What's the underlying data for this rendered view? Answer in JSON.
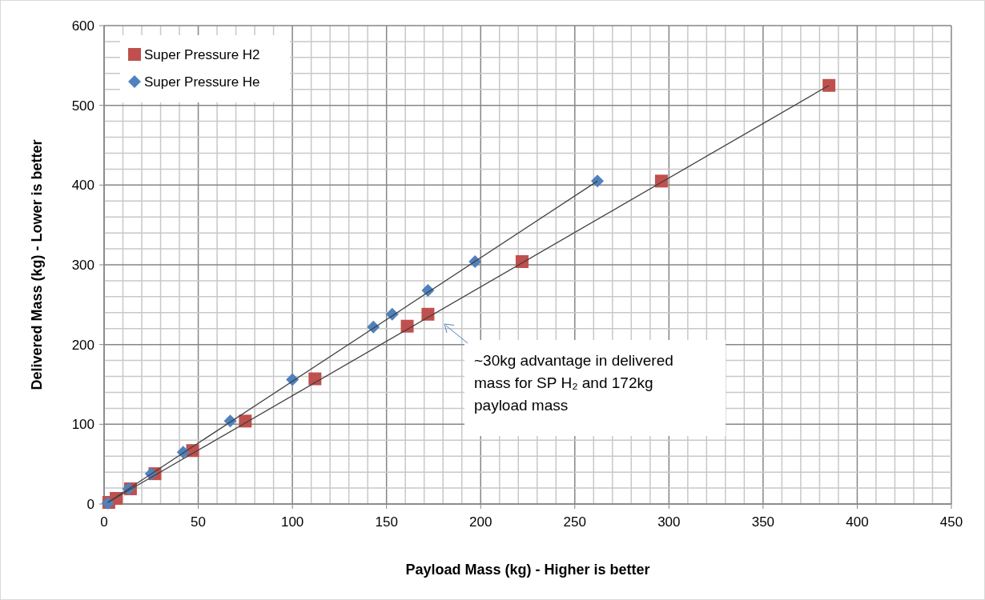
{
  "chart_data": {
    "type": "scatter",
    "xlabel": "Payload Mass (kg) - Higher is better",
    "ylabel": "Delivered Mass (kg) - Lower is better",
    "xlim": [
      0,
      450
    ],
    "ylim": [
      0,
      600
    ],
    "xticks": [
      0,
      {
        "value": 10,
        "label": null
      },
      {
        "value": 20,
        "label": null
      },
      {
        "value": 30,
        "label": null
      },
      {
        "value": 40,
        "label": null
      },
      50,
      {
        "value": 60,
        "label": null
      },
      {
        "value": 70,
        "label": null
      },
      {
        "value": 80,
        "label": null
      },
      {
        "value": 90,
        "label": null
      },
      100,
      {
        "value": 110,
        "label": null
      },
      {
        "value": 120,
        "label": null
      },
      {
        "value": 130,
        "label": null
      },
      {
        "value": 140,
        "label": null
      },
      150,
      {
        "value": 160,
        "label": null
      },
      {
        "value": 170,
        "label": null
      },
      {
        "value": 180,
        "label": null
      },
      {
        "value": 190,
        "label": null
      },
      200,
      {
        "value": 210,
        "label": null
      },
      {
        "value": 220,
        "label": null
      },
      {
        "value": 230,
        "label": null
      },
      {
        "value": 240,
        "label": null
      },
      250,
      {
        "value": 260,
        "label": null
      },
      {
        "value": 270,
        "label": null
      },
      {
        "value": 280,
        "label": null
      },
      {
        "value": 290,
        "label": null
      },
      300,
      {
        "value": 310,
        "label": null
      },
      {
        "value": 320,
        "label": null
      },
      {
        "value": 330,
        "label": null
      },
      {
        "value": 340,
        "label": null
      },
      350,
      {
        "value": 360,
        "label": null
      },
      {
        "value": 370,
        "label": null
      },
      {
        "value": 380,
        "label": null
      },
      {
        "value": 390,
        "label": null
      },
      400,
      {
        "value": 410,
        "label": null
      },
      {
        "value": 420,
        "label": null
      },
      {
        "value": 430,
        "label": null
      },
      {
        "value": 440,
        "label": null
      },
      450
    ],
    "yticks": [
      0,
      {
        "value": 20,
        "label": null
      },
      {
        "value": 40,
        "label": null
      },
      {
        "value": 60,
        "label": null
      },
      {
        "value": 80,
        "label": null
      },
      100,
      {
        "value": 120,
        "label": null
      },
      {
        "value": 140,
        "label": null
      },
      {
        "value": 160,
        "label": null
      },
      {
        "value": 180,
        "label": null
      },
      200,
      {
        "value": 220,
        "label": null
      },
      {
        "value": 240,
        "label": null
      },
      {
        "value": 260,
        "label": null
      },
      {
        "value": 280,
        "label": null
      },
      300,
      {
        "value": 320,
        "label": null
      },
      {
        "value": 340,
        "label": null
      },
      {
        "value": 360,
        "label": null
      },
      {
        "value": 380,
        "label": null
      },
      400,
      {
        "value": 420,
        "label": null
      },
      {
        "value": 440,
        "label": null
      },
      {
        "value": 460,
        "label": null
      },
      {
        "value": 480,
        "label": null
      },
      500,
      {
        "value": 520,
        "label": null
      },
      {
        "value": 540,
        "label": null
      },
      {
        "value": 560,
        "label": null
      },
      {
        "value": 580,
        "label": null
      },
      600
    ],
    "grid": true,
    "legend": "top left",
    "series": [
      {
        "name": "Super Pressure H2",
        "color": "#c0504d",
        "marker": "square",
        "x": [
          2.5,
          6.4,
          14,
          27,
          47,
          75,
          112,
          161,
          172,
          222,
          296,
          385
        ],
        "values": [
          2,
          7,
          19,
          38,
          67,
          104,
          157,
          223,
          238,
          304,
          405,
          525
        ]
      },
      {
        "name": "Super Pressure He",
        "color": "#4f81bd",
        "marker": "diamond",
        "x": [
          2,
          13,
          25,
          42,
          67,
          100,
          143,
          153,
          172,
          197,
          262
        ],
        "values": [
          1,
          19,
          38,
          65,
          104,
          156,
          222,
          238,
          268,
          304,
          405
        ]
      },
      {
        "type": "line",
        "color": "#404040",
        "marker": "none",
        "x": [
          2,
          385
        ],
        "values": [
          2,
          525
        ]
      },
      {
        "type": "line",
        "color": "#404040",
        "marker": "none",
        "x": [
          2,
          262
        ],
        "values": [
          2,
          405
        ]
      }
    ],
    "annotations": [
      "~30kg advantage in delivered mass for SP H₂ and 172kg payload mass"
    ]
  }
}
